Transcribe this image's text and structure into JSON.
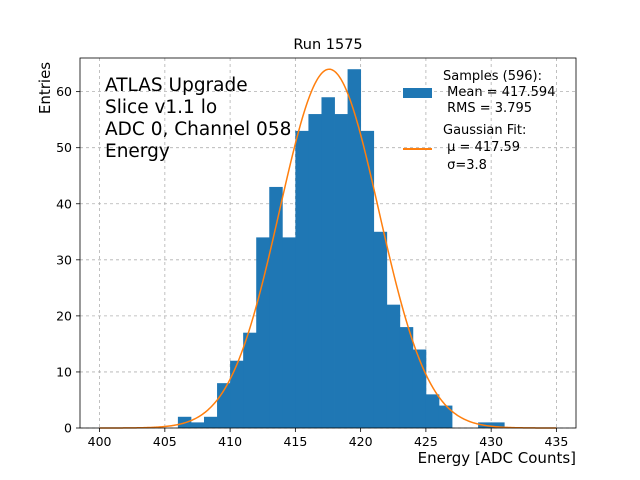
{
  "chart_data": {
    "type": "bar",
    "title": "Run 1575",
    "xlabel": "Energy [ADC Counts]",
    "ylabel": "Entries",
    "xlim": [
      398.5,
      436.5
    ],
    "ylim": [
      0,
      66
    ],
    "grid": true,
    "xticks": [
      400,
      405,
      410,
      415,
      420,
      425,
      430,
      435
    ],
    "yticks": [
      0,
      10,
      20,
      30,
      40,
      50,
      60
    ],
    "bin_width": 1,
    "bins": [
      {
        "x0": 406,
        "count": 2
      },
      {
        "x0": 407,
        "count": 1
      },
      {
        "x0": 408,
        "count": 2
      },
      {
        "x0": 409,
        "count": 8
      },
      {
        "x0": 410,
        "count": 12
      },
      {
        "x0": 411,
        "count": 17
      },
      {
        "x0": 412,
        "count": 34
      },
      {
        "x0": 413,
        "count": 43
      },
      {
        "x0": 414,
        "count": 34
      },
      {
        "x0": 415,
        "count": 53
      },
      {
        "x0": 416,
        "count": 56
      },
      {
        "x0": 417,
        "count": 59
      },
      {
        "x0": 418,
        "count": 56
      },
      {
        "x0": 419,
        "count": 64
      },
      {
        "x0": 420,
        "count": 53
      },
      {
        "x0": 421,
        "count": 35
      },
      {
        "x0": 422,
        "count": 22
      },
      {
        "x0": 423,
        "count": 18
      },
      {
        "x0": 424,
        "count": 14
      },
      {
        "x0": 425,
        "count": 6
      },
      {
        "x0": 426,
        "count": 4
      },
      {
        "x0": 429,
        "count": 1
      },
      {
        "x0": 430,
        "count": 1
      }
    ],
    "fit": {
      "type": "gaussian",
      "mu": 417.59,
      "sigma": 3.8,
      "amplitude": 64,
      "range": [
        400,
        435
      ],
      "color": "#ff7f0e"
    },
    "bar_color": "#1f77b4",
    "annotation": [
      "ATLAS Upgrade",
      "Slice v1.1 lo",
      "ADC 0, Channel 058",
      "Energy"
    ],
    "legend": {
      "placement": "top-right",
      "samples": [
        "Samples (596):",
        " Mean = 417.594",
        " RMS = 3.795"
      ],
      "fit": [
        "Gaussian Fit:",
        " μ = 417.59",
        " σ=3.8"
      ]
    }
  }
}
